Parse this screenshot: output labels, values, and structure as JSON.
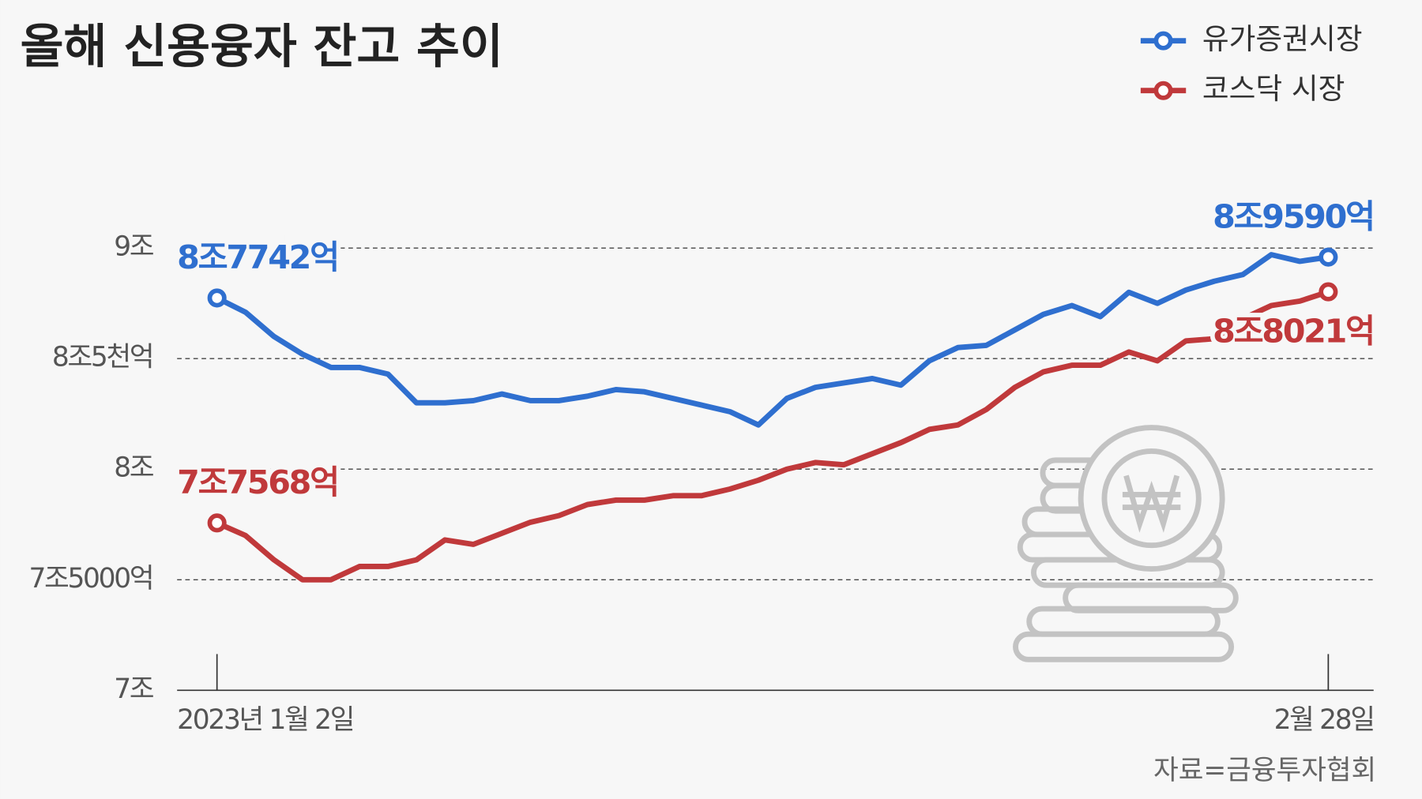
{
  "chart_data": {
    "type": "line",
    "title": "올해 신용융자 잔고 추이",
    "source": "자료=금융투자협회",
    "categories": [
      "2023년 1월 2일",
      null,
      null,
      null,
      null,
      null,
      null,
      null,
      null,
      null,
      null,
      null,
      null,
      null,
      null,
      null,
      null,
      null,
      null,
      null,
      null,
      null,
      null,
      null,
      null,
      null,
      null,
      null,
      null,
      null,
      null,
      null,
      null,
      null,
      null,
      null,
      null,
      null,
      null,
      "2월 28일"
    ],
    "series": [
      {
        "name": "유가증권시장",
        "color": "#2f6fcf",
        "values": [
          8.7742,
          8.71,
          8.6,
          8.52,
          8.46,
          8.46,
          8.43,
          8.3,
          8.3,
          8.31,
          8.34,
          8.31,
          8.31,
          8.33,
          8.36,
          8.35,
          8.32,
          8.29,
          8.26,
          8.2,
          8.32,
          8.37,
          8.39,
          8.41,
          8.38,
          8.49,
          8.55,
          8.56,
          8.63,
          8.7,
          8.74,
          8.69,
          8.8,
          8.75,
          8.81,
          8.85,
          8.88,
          8.97,
          8.94,
          8.959
        ],
        "value_labels": [
          "8조7742억",
          null,
          null,
          null,
          null,
          null,
          null,
          null,
          null,
          null,
          null,
          null,
          null,
          null,
          null,
          null,
          null,
          null,
          null,
          null,
          null,
          null,
          null,
          null,
          null,
          null,
          null,
          null,
          null,
          null,
          null,
          null,
          null,
          null,
          null,
          null,
          null,
          null,
          null,
          "8조9590억"
        ]
      },
      {
        "name": "코스닥 시장",
        "color": "#c0393b",
        "values": [
          7.7568,
          7.7,
          7.59,
          7.5,
          7.5,
          7.56,
          7.56,
          7.59,
          7.68,
          7.66,
          7.71,
          7.76,
          7.79,
          7.84,
          7.86,
          7.86,
          7.88,
          7.88,
          7.91,
          7.95,
          8.0,
          8.03,
          8.02,
          8.07,
          8.12,
          8.18,
          8.2,
          8.27,
          8.37,
          8.44,
          8.47,
          8.47,
          8.53,
          8.49,
          8.58,
          8.59,
          8.68,
          8.74,
          8.76,
          8.8021
        ],
        "value_labels": [
          "7조7568억",
          null,
          null,
          null,
          null,
          null,
          null,
          null,
          null,
          null,
          null,
          null,
          null,
          null,
          null,
          null,
          null,
          null,
          null,
          null,
          null,
          null,
          null,
          null,
          null,
          null,
          null,
          null,
          null,
          null,
          null,
          null,
          null,
          null,
          null,
          null,
          null,
          null,
          null,
          "8조8021억"
        ]
      }
    ],
    "ylim": [
      7,
      9.2
    ],
    "yticks": [
      {
        "value": 7,
        "label": "7조"
      },
      {
        "value": 7.5,
        "label": "7조5000억"
      },
      {
        "value": 8,
        "label": "8조"
      },
      {
        "value": 8.5,
        "label": "8조5천억"
      },
      {
        "value": 9,
        "label": "9조"
      }
    ],
    "grid": true,
    "legend": "top-right"
  }
}
